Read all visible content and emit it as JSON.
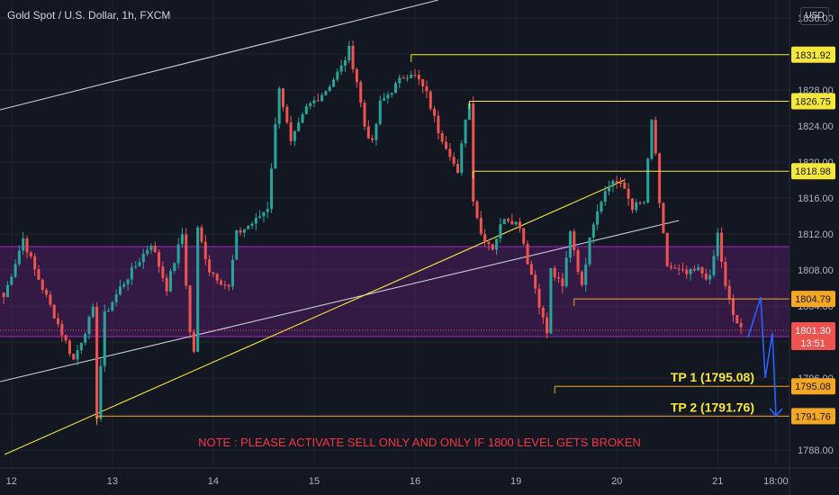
{
  "header": {
    "symbol": "Gold Spot / U.S. Dollar, 1h, FXCM",
    "currency": "USD"
  },
  "colors": {
    "bg": "#131722",
    "up": "#26a69a",
    "down": "#ef5350",
    "grid": "#1e222d",
    "axis_text": "#b2b5be",
    "yellow": "#f6e83a",
    "orange": "#f5a623",
    "zone": "#8e24aa",
    "blue": "#2962ff",
    "note": "#f23645"
  },
  "chart_data": {
    "type": "candlestick",
    "ylim": [
      1786,
      1838
    ],
    "y_ticks": [
      1836,
      1832,
      1828,
      1824,
      1820,
      1816,
      1812,
      1808,
      1804,
      1800,
      1796,
      1792,
      1788
    ],
    "x_ticks": [
      {
        "label": "12",
        "bar": 2
      },
      {
        "label": "13",
        "bar": 28
      },
      {
        "label": "14",
        "bar": 54
      },
      {
        "label": "15",
        "bar": 80
      },
      {
        "label": "16",
        "bar": 106
      },
      {
        "label": "19",
        "bar": 132
      },
      {
        "label": "20",
        "bar": 158
      },
      {
        "label": "21",
        "bar": 184
      },
      {
        "label": "18:00",
        "bar": 199
      }
    ],
    "bar_count": 203,
    "resistance_levels": [
      {
        "label": "1831.92",
        "value": 1831.92,
        "from_bar": 105
      },
      {
        "label": "1826.75",
        "value": 1826.75,
        "from_bar": 120
      },
      {
        "label": "1818.98",
        "value": 1818.98,
        "from_bar": 121
      }
    ],
    "support_levels": [
      {
        "label": "1804.79",
        "value": 1804.79,
        "from_bar": 147
      },
      {
        "label": "1795.08",
        "value": 1795.08,
        "from_bar": 142
      },
      {
        "label": "1791.76",
        "value": 1791.76,
        "from_bar": 24
      }
    ],
    "current_price": {
      "label": "1801.30",
      "value": 1801.3,
      "countdown": "13:51"
    },
    "zone": {
      "from": 1800.6,
      "to": 1810.6
    },
    "channel_upper": {
      "bar1": 0,
      "value1": 1825.8,
      "bar2": 112,
      "value2": 1838
    },
    "channel_lower": {
      "bar1": 0,
      "value1": 1795.6,
      "bar2": 174,
      "value2": 1813.5
    },
    "yellow_trend": {
      "bar1": 3,
      "value1": 1787.5,
      "bar2": 160,
      "value2": 1818
    },
    "targets": [
      {
        "label": "TP 1 (1795.08)",
        "value": 1795.08
      },
      {
        "label": "TP 2 (1791.76)",
        "value": 1791.76
      }
    ],
    "note": "NOTE : PLEASE ACTIVATE SELL ONLY AND ONLY IF 1800 LEVEL GETS BROKEN",
    "anchors": [
      [
        0,
        1805
      ],
      [
        5,
        1811.5
      ],
      [
        8,
        1808
      ],
      [
        12,
        1804
      ],
      [
        18,
        1798
      ],
      [
        23,
        1803.5
      ],
      [
        24,
        1791.8
      ],
      [
        26,
        1803
      ],
      [
        30,
        1806
      ],
      [
        34,
        1808.5
      ],
      [
        38,
        1811
      ],
      [
        42,
        1806
      ],
      [
        46,
        1812
      ],
      [
        48,
        1801
      ],
      [
        49,
        1799
      ],
      [
        50,
        1812.5
      ],
      [
        53,
        1808
      ],
      [
        58,
        1806
      ],
      [
        60,
        1812
      ],
      [
        65,
        1813.5
      ],
      [
        68,
        1815
      ],
      [
        71,
        1828.5
      ],
      [
        74,
        1822
      ],
      [
        78,
        1826
      ],
      [
        83,
        1828
      ],
      [
        87,
        1830.5
      ],
      [
        89,
        1832.5
      ],
      [
        91,
        1829
      ],
      [
        93,
        1824
      ],
      [
        95,
        1822
      ],
      [
        97,
        1826.5
      ],
      [
        100,
        1828
      ],
      [
        103,
        1829.5
      ],
      [
        105,
        1830
      ],
      [
        107,
        1829
      ],
      [
        109,
        1827.5
      ],
      [
        112,
        1823.5
      ],
      [
        115,
        1821
      ],
      [
        117,
        1818.5
      ],
      [
        119,
        1825
      ],
      [
        120,
        1826.5
      ],
      [
        121,
        1816
      ],
      [
        123,
        1812
      ],
      [
        126,
        1810.5
      ],
      [
        129,
        1814
      ],
      [
        133,
        1813
      ],
      [
        135,
        1809
      ],
      [
        137,
        1806
      ],
      [
        139,
        1802.5
      ],
      [
        140,
        1801
      ],
      [
        141,
        1808
      ],
      [
        144,
        1806
      ],
      [
        146,
        1812.5
      ],
      [
        149,
        1806
      ],
      [
        151,
        1812
      ],
      [
        154,
        1816
      ],
      [
        157,
        1818
      ],
      [
        160,
        1817
      ],
      [
        162,
        1815
      ],
      [
        165,
        1815.5
      ],
      [
        167,
        1824.5
      ],
      [
        168,
        1821
      ],
      [
        169,
        1815
      ],
      [
        171,
        1808.5
      ],
      [
        173,
        1808
      ],
      [
        176,
        1807.5
      ],
      [
        179,
        1808
      ],
      [
        182,
        1807
      ],
      [
        184,
        1812
      ],
      [
        186,
        1806
      ],
      [
        188,
        1803
      ],
      [
        190,
        1801.3
      ]
    ]
  }
}
